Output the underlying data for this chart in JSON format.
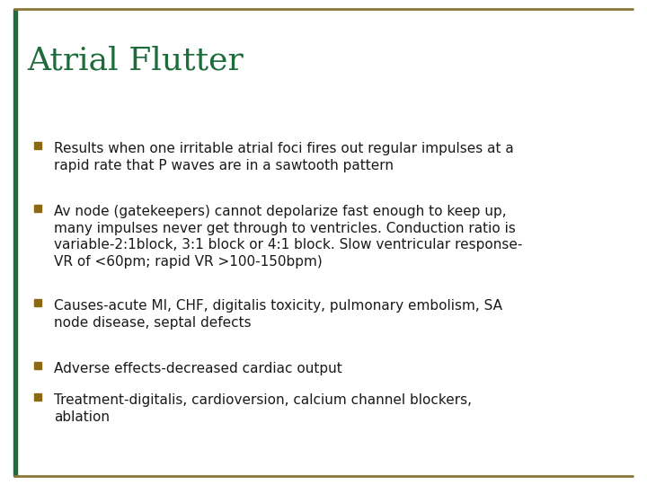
{
  "title": "Atrial Flutter",
  "title_color": "#1E6B3C",
  "title_fontsize": 26,
  "background_color": "#FFFFFF",
  "border_color": "#8B7536",
  "bullet_color": "#8B6914",
  "text_color": "#1a1a1a",
  "left_bar_color": "#1E6B3C",
  "bullet_points": [
    "Results when one irritable atrial foci fires out regular impulses at a\nrapid rate that P waves are in a sawtooth pattern",
    "Av node (gatekeepers) cannot depolarize fast enough to keep up,\nmany impulses never get through to ventricles. Conduction ratio is\nvariable-2:1block, 3:1 block or 4:1 block. Slow ventricular response-\nVR of <60pm; rapid VR >100-150bpm)",
    "Causes-acute MI, CHF, digitalis toxicity, pulmonary embolism, SA\nnode disease, septal defects",
    "Adverse effects-decreased cardiac output",
    "Treatment-digitalis, cardioversion, calcium channel blockers,\nablation"
  ],
  "text_fontsize": 11,
  "figsize": [
    7.2,
    5.4
  ],
  "dpi": 100
}
